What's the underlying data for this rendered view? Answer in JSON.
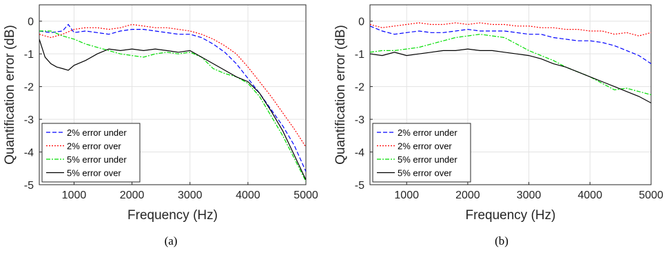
{
  "chart_data": [
    {
      "panel": "(a)",
      "type": "line",
      "xlabel": "Frequency (Hz)",
      "ylabel": "Quantification error (dB)",
      "xlim": [
        400,
        5000
      ],
      "ylim": [
        -5,
        0.5
      ],
      "xticks": [
        1000,
        2000,
        3000,
        4000,
        5000
      ],
      "yticks": [
        0,
        -1,
        -2,
        -3,
        -4,
        -5
      ],
      "grid": true,
      "legend_position": "bottom-left",
      "series": [
        {
          "name": "2% error under",
          "color": "#0000ff",
          "dash": "6,3",
          "x": [
            400,
            600,
            800,
            900,
            1000,
            1200,
            1400,
            1600,
            1800,
            2000,
            2200,
            2400,
            2600,
            2800,
            3000,
            3200,
            3400,
            3600,
            3800,
            4000,
            4200,
            4400,
            4600,
            4800,
            5000
          ],
          "y": [
            -0.3,
            -0.35,
            -0.3,
            -0.1,
            -0.35,
            -0.3,
            -0.35,
            -0.4,
            -0.3,
            -0.25,
            -0.25,
            -0.3,
            -0.35,
            -0.4,
            -0.4,
            -0.5,
            -0.7,
            -0.95,
            -1.3,
            -1.75,
            -2.2,
            -2.7,
            -3.2,
            -3.8,
            -4.6
          ]
        },
        {
          "name": "2% error over",
          "color": "#ff0000",
          "dash": "2,2",
          "x": [
            400,
            600,
            800,
            1000,
            1200,
            1400,
            1600,
            1800,
            2000,
            2200,
            2400,
            2600,
            2800,
            3000,
            3200,
            3400,
            3600,
            3800,
            4000,
            4200,
            4400,
            4600,
            4800,
            5000
          ],
          "y": [
            -0.4,
            -0.5,
            -0.4,
            -0.25,
            -0.2,
            -0.2,
            -0.25,
            -0.2,
            -0.1,
            -0.15,
            -0.2,
            -0.2,
            -0.25,
            -0.3,
            -0.4,
            -0.55,
            -0.75,
            -1.0,
            -1.4,
            -1.85,
            -2.3,
            -2.8,
            -3.3,
            -3.85
          ]
        },
        {
          "name": "5% error under",
          "color": "#00dd00",
          "dash": "6,2,2,2",
          "x": [
            400,
            600,
            800,
            1000,
            1200,
            1400,
            1600,
            1800,
            2000,
            2200,
            2400,
            2600,
            2800,
            3000,
            3200,
            3400,
            3600,
            3800,
            4000,
            4200,
            4400,
            4600,
            4800,
            5000
          ],
          "y": [
            -0.3,
            -0.3,
            -0.45,
            -0.55,
            -0.7,
            -0.8,
            -0.9,
            -1.0,
            -1.05,
            -1.1,
            -1.0,
            -0.95,
            -1.0,
            -0.95,
            -1.1,
            -1.45,
            -1.6,
            -1.7,
            -1.9,
            -2.3,
            -2.9,
            -3.5,
            -4.2,
            -4.9
          ]
        },
        {
          "name": "5% error over",
          "color": "#000000",
          "dash": "",
          "x": [
            400,
            500,
            600,
            700,
            800,
            900,
            1000,
            1200,
            1400,
            1600,
            1800,
            2000,
            2200,
            2400,
            2600,
            2800,
            3000,
            3200,
            3400,
            3600,
            3800,
            4000,
            4200,
            4400,
            4600,
            4800,
            5000
          ],
          "y": [
            -0.55,
            -1.1,
            -1.3,
            -1.4,
            -1.45,
            -1.5,
            -1.35,
            -1.2,
            -1.0,
            -0.85,
            -0.9,
            -0.85,
            -0.9,
            -0.85,
            -0.9,
            -0.95,
            -0.9,
            -1.1,
            -1.3,
            -1.5,
            -1.7,
            -1.85,
            -2.2,
            -2.75,
            -3.35,
            -4.1,
            -4.85
          ]
        }
      ]
    },
    {
      "panel": "(b)",
      "type": "line",
      "xlabel": "Frequency (Hz)",
      "ylabel": "Quantification error (dB)",
      "xlim": [
        400,
        5000
      ],
      "ylim": [
        -5,
        0.5
      ],
      "xticks": [
        1000,
        2000,
        3000,
        4000,
        5000
      ],
      "yticks": [
        0,
        -1,
        -2,
        -3,
        -4,
        -5
      ],
      "grid": true,
      "legend_position": "bottom-left",
      "series": [
        {
          "name": "2% error under",
          "color": "#0000ff",
          "dash": "6,3",
          "x": [
            400,
            600,
            800,
            1000,
            1200,
            1400,
            1600,
            1800,
            2000,
            2200,
            2400,
            2600,
            2800,
            3000,
            3200,
            3400,
            3600,
            3800,
            4000,
            4200,
            4400,
            4600,
            4800,
            5000
          ],
          "y": [
            -0.15,
            -0.3,
            -0.4,
            -0.35,
            -0.3,
            -0.35,
            -0.35,
            -0.3,
            -0.25,
            -0.3,
            -0.3,
            -0.3,
            -0.35,
            -0.4,
            -0.4,
            -0.5,
            -0.55,
            -0.6,
            -0.6,
            -0.65,
            -0.75,
            -0.9,
            -1.05,
            -1.3
          ]
        },
        {
          "name": "2% error over",
          "color": "#ff0000",
          "dash": "2,2",
          "x": [
            400,
            600,
            800,
            1000,
            1200,
            1400,
            1600,
            1800,
            2000,
            2200,
            2400,
            2600,
            2800,
            3000,
            3200,
            3400,
            3600,
            3800,
            4000,
            4200,
            4400,
            4600,
            4800,
            5000
          ],
          "y": [
            -0.1,
            -0.2,
            -0.15,
            -0.1,
            -0.05,
            -0.1,
            -0.1,
            -0.05,
            -0.1,
            -0.05,
            -0.1,
            -0.1,
            -0.15,
            -0.15,
            -0.2,
            -0.2,
            -0.25,
            -0.25,
            -0.3,
            -0.3,
            -0.4,
            -0.35,
            -0.45,
            -0.35
          ]
        },
        {
          "name": "5% error under",
          "color": "#00dd00",
          "dash": "6,2,2,2",
          "x": [
            400,
            600,
            800,
            1000,
            1200,
            1400,
            1600,
            1800,
            2000,
            2200,
            2400,
            2600,
            2800,
            3000,
            3200,
            3400,
            3600,
            3800,
            4000,
            4200,
            4400,
            4600,
            4800,
            5000
          ],
          "y": [
            -0.95,
            -0.9,
            -0.9,
            -0.85,
            -0.8,
            -0.7,
            -0.6,
            -0.5,
            -0.45,
            -0.4,
            -0.45,
            -0.5,
            -0.7,
            -0.9,
            -1.05,
            -1.2,
            -1.4,
            -1.55,
            -1.7,
            -1.9,
            -2.1,
            -2.05,
            -2.15,
            -2.25
          ]
        },
        {
          "name": "5% error over",
          "color": "#000000",
          "dash": "",
          "x": [
            400,
            600,
            800,
            1000,
            1200,
            1400,
            1600,
            1800,
            2000,
            2200,
            2400,
            2600,
            2800,
            3000,
            3200,
            3400,
            3600,
            3800,
            4000,
            4200,
            4400,
            4600,
            4800,
            5000
          ],
          "y": [
            -1.0,
            -1.05,
            -0.95,
            -1.05,
            -1.0,
            -0.95,
            -0.9,
            -0.9,
            -0.85,
            -0.9,
            -0.9,
            -0.95,
            -1.0,
            -1.05,
            -1.15,
            -1.3,
            -1.4,
            -1.55,
            -1.7,
            -1.85,
            -2.0,
            -2.15,
            -2.3,
            -2.5
          ]
        }
      ]
    }
  ]
}
